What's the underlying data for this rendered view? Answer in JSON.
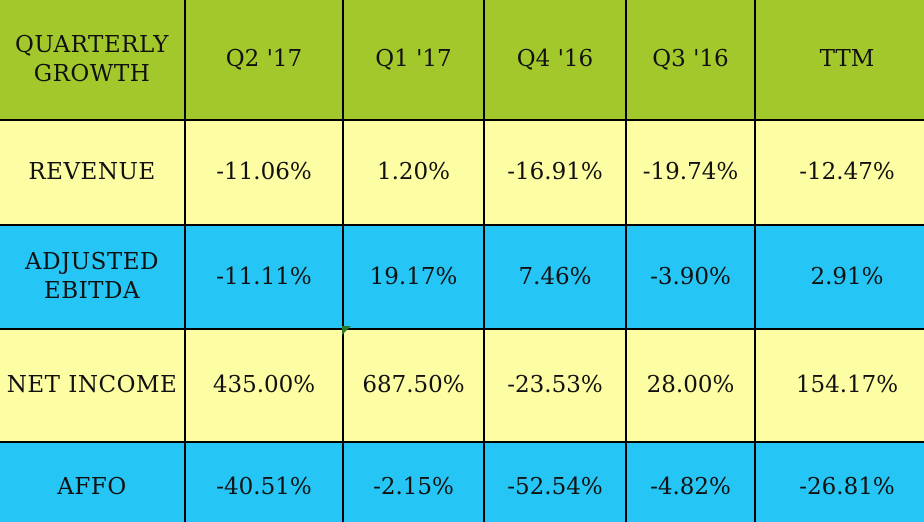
{
  "table": {
    "header": {
      "corner": "QUARTERLY\nGROWTH",
      "columns": [
        "Q2 '17",
        "Q1 '17",
        "Q4 '16",
        "Q3 '16",
        "TTM"
      ]
    },
    "rows": [
      {
        "label": "REVENUE",
        "values": [
          "-11.06%",
          "1.20%",
          "-16.91%",
          "-19.74%",
          "-12.47%"
        ]
      },
      {
        "label": "ADJUSTED\nEBITDA",
        "values": [
          "-11.11%",
          "19.17%",
          "7.46%",
          "-3.90%",
          "2.91%"
        ]
      },
      {
        "label": "NET INCOME",
        "values": [
          "435.00%",
          "687.50%",
          "-23.53%",
          "28.00%",
          "154.17%"
        ]
      },
      {
        "label": "AFFO",
        "values": [
          "-40.51%",
          "-2.15%",
          "-52.54%",
          "-4.82%",
          "-26.81%"
        ]
      }
    ]
  },
  "colors": {
    "header": "#a3c82c",
    "row_yellow": "#fdfda3",
    "row_blue": "#25c5f5",
    "border": "#000000"
  }
}
